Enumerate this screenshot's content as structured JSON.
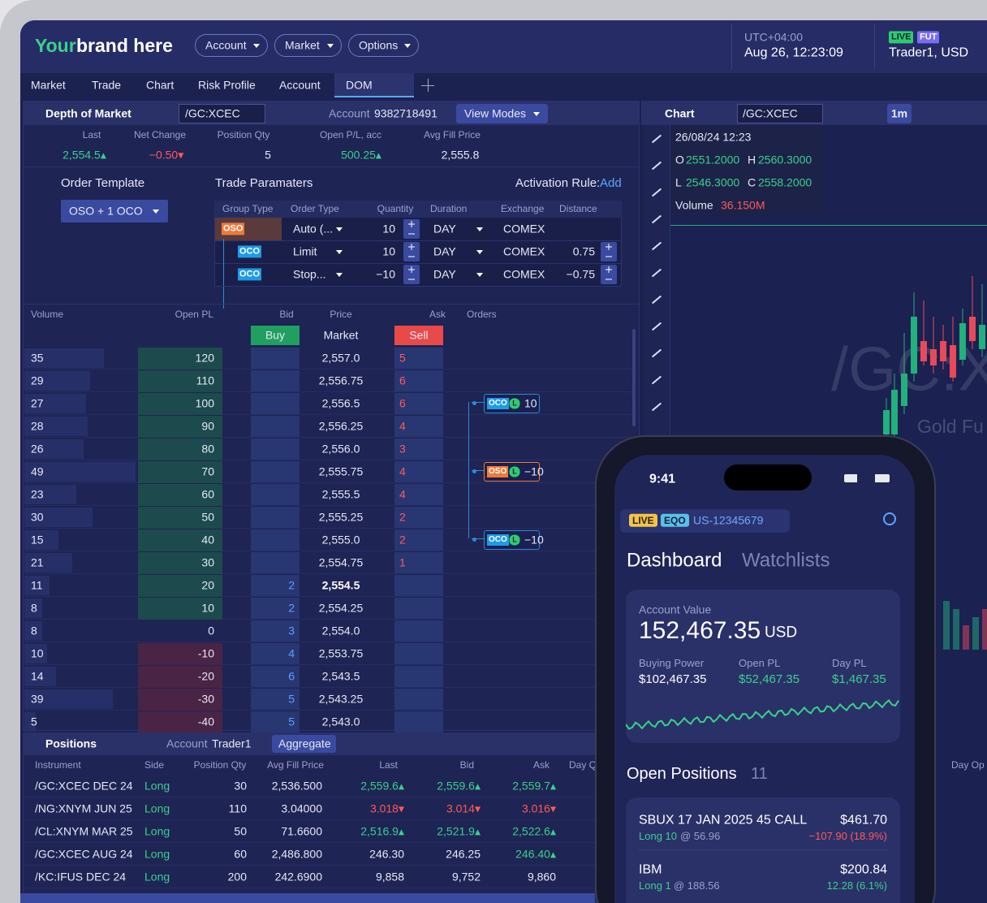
{
  "header": {
    "brand_highlight": "Your",
    "brand_rest": "brand here",
    "menus": [
      "Account",
      "Market",
      "Options"
    ],
    "timezone": "UTC+04:00",
    "datetime": "Aug 26, 12:23:09",
    "badges": [
      "LIVE",
      "FUT"
    ],
    "account": "Trader1, USD"
  },
  "tabs": [
    "Market",
    "Trade",
    "Chart",
    "Risk Profile",
    "Account",
    "DOM"
  ],
  "dom": {
    "title": "Depth of Market",
    "symbol": "/GC:XCEC",
    "account_label": "Account",
    "account": "9382718491",
    "view_modes": "View Modes",
    "summary": {
      "headers": [
        "Last",
        "Net Change",
        "Position Qty",
        "Open P/L, acc",
        "Avg Fill Price"
      ],
      "values": [
        "2,554.5▴",
        "−0.50▾",
        "5",
        "500.25▴",
        "2,555.8"
      ]
    },
    "order_template": {
      "label": "Order Template",
      "selected": "OSO + 1 OCO"
    },
    "trade_parameters": {
      "label": "Trade Paramaters",
      "activation_label": "Activation Rule:",
      "activation_value": "Add",
      "headers": [
        "Group Type",
        "Order Type",
        "Quantity",
        "Duration",
        "Exchange",
        "Distance"
      ],
      "rows": [
        {
          "group": "OSO",
          "type": "Auto (...",
          "quantity": "10",
          "duration": "DAY",
          "exchange": "COMEX"
        },
        {
          "group": "OCO",
          "type": "Limit",
          "quantity": "10",
          "duration": "DAY",
          "exchange": "COMEX",
          "distance": "0.75"
        },
        {
          "group": "OCO",
          "type": "Stop...",
          "quantity": "−10",
          "duration": "DAY",
          "exchange": "COMEX",
          "distance": "−0.75"
        }
      ]
    },
    "ladder": {
      "headers": [
        "Volume",
        "Open PL",
        "Bid",
        "Price",
        "Ask",
        "Orders"
      ],
      "buy": "Buy",
      "market": "Market",
      "sell": "Sell",
      "rows": [
        {
          "volume": 35,
          "open_pl": 120,
          "price": "2,557.0",
          "ask": 5
        },
        {
          "volume": 29,
          "open_pl": 110,
          "price": "2,556.75",
          "ask": 6
        },
        {
          "volume": 27,
          "open_pl": 100,
          "price": "2,556.5",
          "ask": 6,
          "order": {
            "group": "OCO",
            "type": "L",
            "quantity": "10"
          }
        },
        {
          "volume": 28,
          "open_pl": 90,
          "price": "2,556.25",
          "ask": 4
        },
        {
          "volume": 26,
          "open_pl": 80,
          "price": "2,556.0",
          "ask": 3
        },
        {
          "volume": 49,
          "open_pl": 70,
          "price": "2,555.75",
          "ask": 4,
          "order": {
            "group": "OSO",
            "type": "L",
            "quantity": "−10"
          }
        },
        {
          "volume": 23,
          "open_pl": 60,
          "price": "2,555.5",
          "ask": 4
        },
        {
          "volume": 30,
          "open_pl": 50,
          "price": "2,555.25",
          "ask": 2
        },
        {
          "volume": 15,
          "open_pl": 40,
          "price": "2,555.0",
          "ask": 2,
          "order": {
            "group": "OCO",
            "type": "L",
            "quantity": "−10"
          }
        },
        {
          "volume": 21,
          "open_pl": 30,
          "price": "2,554.75",
          "ask": 1
        },
        {
          "volume": 11,
          "open_pl": 20,
          "bid": 2,
          "price": "2,554.5",
          "current": true
        },
        {
          "volume": 8,
          "open_pl": 10,
          "bid": 2,
          "price": "2,554.25"
        },
        {
          "volume": 8,
          "open_pl": 0,
          "bid": 3,
          "price": "2,554.0"
        },
        {
          "volume": 10,
          "open_pl": -10,
          "bid": 4,
          "price": "2,553.75"
        },
        {
          "volume": 14,
          "open_pl": -20,
          "bid": 6,
          "price": "2,543.5"
        },
        {
          "volume": 39,
          "open_pl": -30,
          "bid": 5,
          "price": "2,543.25"
        },
        {
          "volume": 5,
          "open_pl": -40,
          "bid": 5,
          "price": "2,543.0"
        }
      ]
    }
  },
  "positions": {
    "title": "Positions",
    "account_label": "Account",
    "account": "Trader1",
    "aggregate": "Aggregate",
    "headers": [
      "Instrument",
      "Side",
      "Position Qty",
      "Avg Fill Price",
      "Last",
      "Bid",
      "Ask",
      "Day Q"
    ],
    "right_header": "Day Op",
    "rows": [
      [
        "/GC:XCEC DEC 24",
        "Long",
        "30",
        "2,536.500",
        "2,559.6▴",
        "2,559.6▴",
        "2,559.7▴"
      ],
      [
        "/NG:XNYM JUN 25",
        "Long",
        "110",
        "3.04000",
        "3.018▾",
        "3.014▾",
        "3.016▾"
      ],
      [
        "/CL:XNYM MAR 25",
        "Long",
        "50",
        "71.6600",
        "2,516.9▴",
        "2,521.9▴",
        "2,522.6▴"
      ],
      [
        "/GC:XCEC AUG 24",
        "Long",
        "60",
        "2,486.800",
        "246.30",
        "246.25",
        "246.40▴"
      ],
      [
        "/KC:IFUS DEC 24",
        "Long",
        "200",
        "242.6900",
        "9,858",
        "9,752",
        "9,860"
      ]
    ]
  },
  "chart": {
    "title": "Chart",
    "symbol": "/GC:XCEC",
    "interval": "1m",
    "datetime": "26/08/24 12:23",
    "ohlc": [
      {
        "label": "O",
        "value": "2551.2000"
      },
      {
        "label": "H",
        "value": "2560.3000"
      },
      {
        "label": "L",
        "value": "2546.3000"
      },
      {
        "label": "C",
        "value": "2558.2000"
      }
    ],
    "volume_label": "Volume",
    "volume": "36.150M",
    "watermark": "/GC:X",
    "watermark_sub": "Gold Fu"
  },
  "phone": {
    "time": "9:41",
    "badges": [
      "LIVE",
      "EQO"
    ],
    "account": "US-12345679",
    "tabs": [
      "Dashboard",
      "Watchlists"
    ],
    "account_value_label": "Account Value",
    "account_value": "152,467.35",
    "currency": "USD",
    "metrics": [
      {
        "label": "Buying Power",
        "value": "$102,467.35"
      },
      {
        "label": "Open PL",
        "value": "$52,467.35"
      },
      {
        "label": "Day PL",
        "value": "$1,467.35"
      }
    ],
    "open_positions_label": "Open Positions",
    "open_positions_count": "11",
    "positions": [
      {
        "name": "SBUX 17 JAN 2025 45 CALL",
        "value": "$461.70",
        "side": "Long 10",
        "price": "@ 56.96",
        "change": "−107.90 (18.9%)"
      },
      {
        "name": "IBM",
        "value": "$200.84",
        "side": "Long 1",
        "price": "@ 188.56",
        "change": "12.28 (6.1%)"
      }
    ]
  }
}
